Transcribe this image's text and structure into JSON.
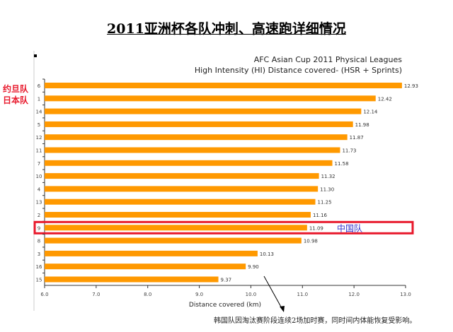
{
  "page_title": "2011亚洲杯各队冲刺、高速跑详细情况",
  "annotations": {
    "jordan": "约旦队",
    "japan": "日本队",
    "china": "中国队",
    "korea_note": "韩国队因淘汰赛阶段连续2场加时赛，同时间内体能恢复受影响。"
  },
  "colors": {
    "bar": "#ff9900",
    "highlight": "#e8192c",
    "china_label": "#3333cc"
  },
  "chart_data": {
    "type": "bar",
    "orientation": "horizontal",
    "title": "AFC Asian Cup 2011 Physical Leagues",
    "subtitle": "High Intensity (HI) Distance covered- (HSR + Sprints)",
    "xlabel": "Distance covered (km)",
    "xlim": [
      6.0,
      13.0
    ],
    "xticks": [
      "6.0",
      "7.0",
      "8.0",
      "9.0",
      "10.0",
      "11.0",
      "12.0",
      "13.0"
    ],
    "categories": [
      "6",
      "1",
      "14",
      "5",
      "12",
      "11",
      "7",
      "10",
      "4",
      "13",
      "2",
      "9",
      "8",
      "3",
      "16",
      "15"
    ],
    "values": [
      12.93,
      12.42,
      12.14,
      11.98,
      11.87,
      11.73,
      11.58,
      11.32,
      11.3,
      11.25,
      11.16,
      11.09,
      10.98,
      10.13,
      9.9,
      9.37
    ],
    "value_labels": [
      "12.93",
      "12.42",
      "12.14",
      "11.98",
      "11.87",
      "11.73",
      "11.58",
      "11.32",
      "11.30",
      "11.25",
      "11.16",
      "11.09",
      "10.98",
      "10.13",
      "9.90",
      "9.37"
    ],
    "highlighted_category": "9"
  }
}
